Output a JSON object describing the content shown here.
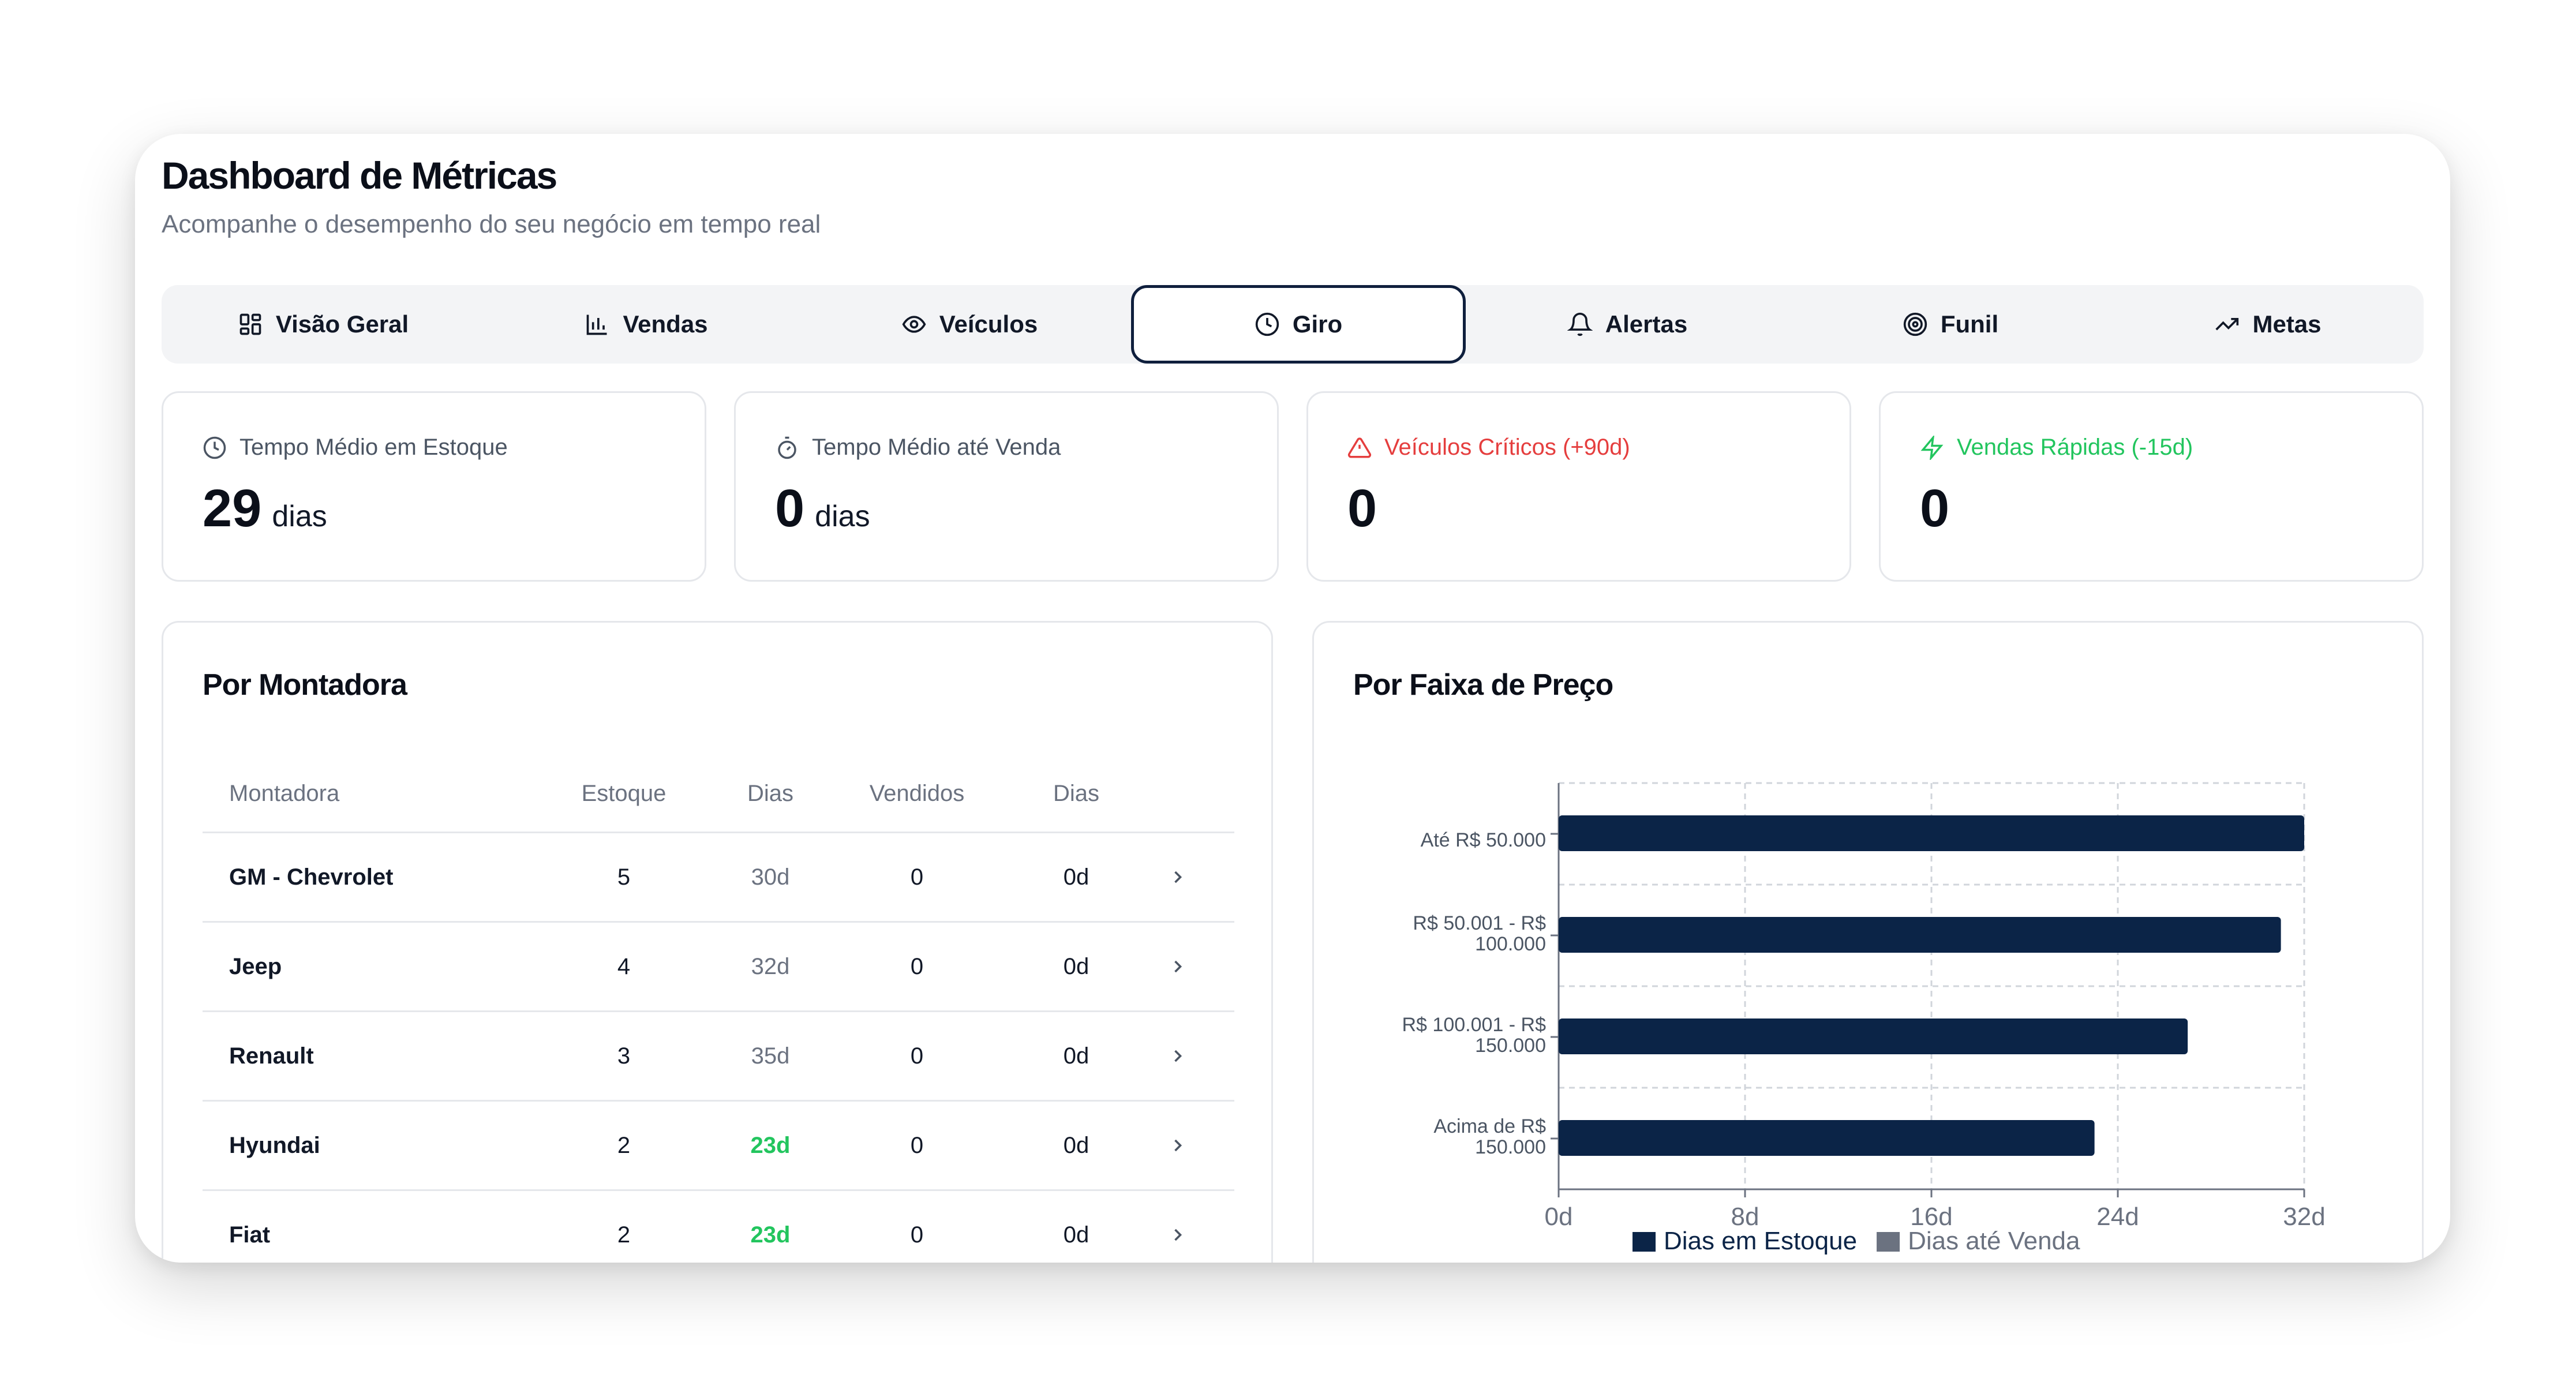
{
  "header": {
    "title": "Dashboard de Métricas",
    "subtitle": "Acompanhe o desempenho do seu negócio em tempo real"
  },
  "tabs": [
    {
      "label": "Visão Geral",
      "icon": "grid-icon"
    },
    {
      "label": "Vendas",
      "icon": "bar-chart-icon"
    },
    {
      "label": "Veículos",
      "icon": "eye-icon"
    },
    {
      "label": "Giro",
      "icon": "clock-icon",
      "active": true
    },
    {
      "label": "Alertas",
      "icon": "bell-icon"
    },
    {
      "label": "Funil",
      "icon": "target-icon"
    },
    {
      "label": "Metas",
      "icon": "trending-up-icon"
    }
  ],
  "stats": [
    {
      "label": "Tempo Médio em Estoque",
      "value": "29",
      "unit": "dias",
      "icon": "clock-icon",
      "color": "#4b5563"
    },
    {
      "label": "Tempo Médio até Venda",
      "value": "0",
      "unit": "dias",
      "icon": "timer-icon",
      "color": "#4b5563"
    },
    {
      "label": "Veículos Críticos (+90d)",
      "value": "0",
      "unit": "",
      "icon": "alert-triangle-icon",
      "color": "#e53e3e"
    },
    {
      "label": "Vendas Rápidas (-15d)",
      "value": "0",
      "unit": "",
      "icon": "zap-icon",
      "color": "#22c55e"
    }
  ],
  "montadora": {
    "title": "Por Montadora",
    "columns": [
      "Montadora",
      "Estoque",
      "Dias",
      "Vendidos",
      "Dias"
    ],
    "rows": [
      {
        "name": "GM - Chevrolet",
        "estoque": "5",
        "dias": "30d",
        "vendidos": "0",
        "dias_venda": "0d"
      },
      {
        "name": "Jeep",
        "estoque": "4",
        "dias": "32d",
        "vendidos": "0",
        "dias_venda": "0d"
      },
      {
        "name": "Renault",
        "estoque": "3",
        "dias": "35d",
        "vendidos": "0",
        "dias_venda": "0d"
      },
      {
        "name": "Hyundai",
        "estoque": "2",
        "dias": "23d",
        "vendidos": "0",
        "dias_venda": "0d",
        "good": true
      },
      {
        "name": "Fiat",
        "estoque": "2",
        "dias": "23d",
        "vendidos": "0",
        "dias_venda": "0d",
        "good": true
      }
    ]
  },
  "faixa": {
    "title": "Por Faixa de Preço"
  },
  "chart_data": {
    "type": "bar",
    "orientation": "horizontal",
    "categories": [
      [
        "Até R$ 50.000"
      ],
      [
        "R$ 50.001 - R$",
        "100.000"
      ],
      [
        "R$ 100.001 - R$",
        "150.000"
      ],
      [
        "Acima de R$",
        "150.000"
      ]
    ],
    "series": [
      {
        "name": "Dias em Estoque",
        "values": [
          32,
          31,
          27,
          23
        ],
        "color": "#0b2447"
      },
      {
        "name": "Dias até Venda",
        "values": [
          0,
          0,
          0,
          0
        ],
        "color": "#6b7280"
      }
    ],
    "xticks": [
      "0d",
      "8d",
      "16d",
      "24d",
      "32d"
    ],
    "xlim": [
      0,
      32
    ],
    "grid": true,
    "legend": "bottom"
  }
}
